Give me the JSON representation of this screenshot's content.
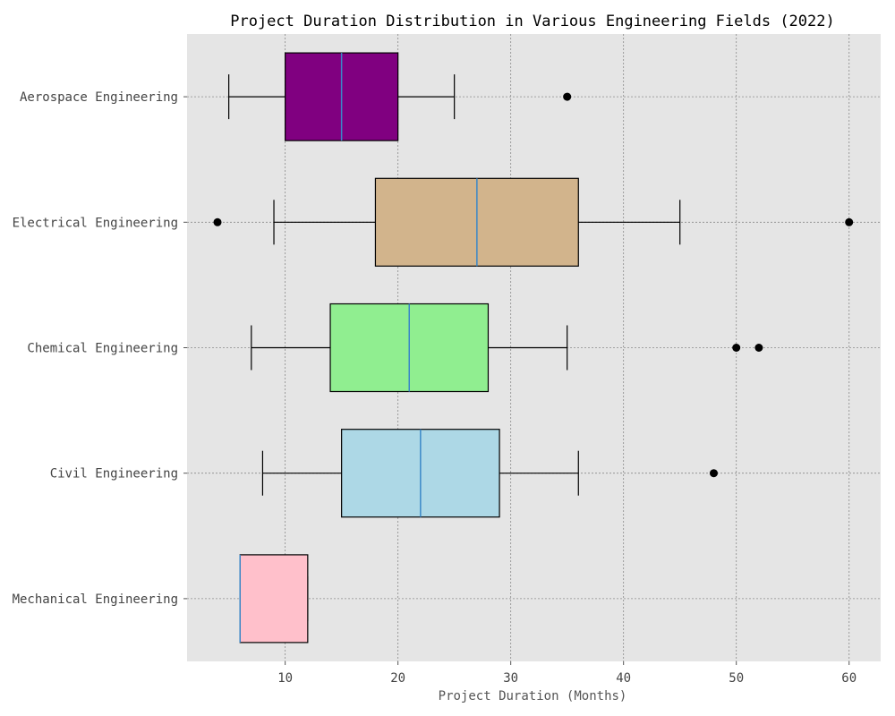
{
  "chart_data": {
    "type": "boxplot",
    "orientation": "horizontal",
    "title": "Project Duration Distribution in Various Engineering Fields (2022)",
    "xlabel": "Project Duration (Months)",
    "ylabel": "",
    "xlim": [
      1.3,
      62.8
    ],
    "xticks": [
      10,
      20,
      30,
      40,
      50,
      60
    ],
    "grid": true,
    "background_color": "#e5e5e5",
    "median_color": "#3a87c8",
    "categories": [
      "Aerospace Engineering",
      "Electrical Engineering",
      "Chemical Engineering",
      "Civil Engineering",
      "Mechanical Engineering"
    ],
    "boxes": [
      {
        "category": "Aerospace Engineering",
        "whisker_low": 5,
        "q1": 10,
        "median": 15,
        "q3": 20,
        "whisker_high": 25,
        "outliers": [
          35
        ],
        "color": "#800080"
      },
      {
        "category": "Electrical Engineering",
        "whisker_low": 9,
        "q1": 18,
        "median": 27,
        "q3": 36,
        "whisker_high": 45,
        "outliers": [
          4,
          60
        ],
        "color": "#d2b48c"
      },
      {
        "category": "Chemical Engineering",
        "whisker_low": 7,
        "q1": 14,
        "median": 21,
        "q3": 28,
        "whisker_high": 35,
        "outliers": [
          50,
          52
        ],
        "color": "#90ee90"
      },
      {
        "category": "Civil Engineering",
        "whisker_low": 8,
        "q1": 15,
        "median": 22,
        "q3": 29,
        "whisker_high": 36,
        "outliers": [
          48
        ],
        "color": "#add8e6"
      },
      {
        "category": "Mechanical Engineering",
        "whisker_low": 6,
        "q1": 6,
        "median": 6,
        "q3": 12,
        "whisker_high": 12,
        "outliers": [],
        "color": "#ffc0cb"
      }
    ]
  }
}
